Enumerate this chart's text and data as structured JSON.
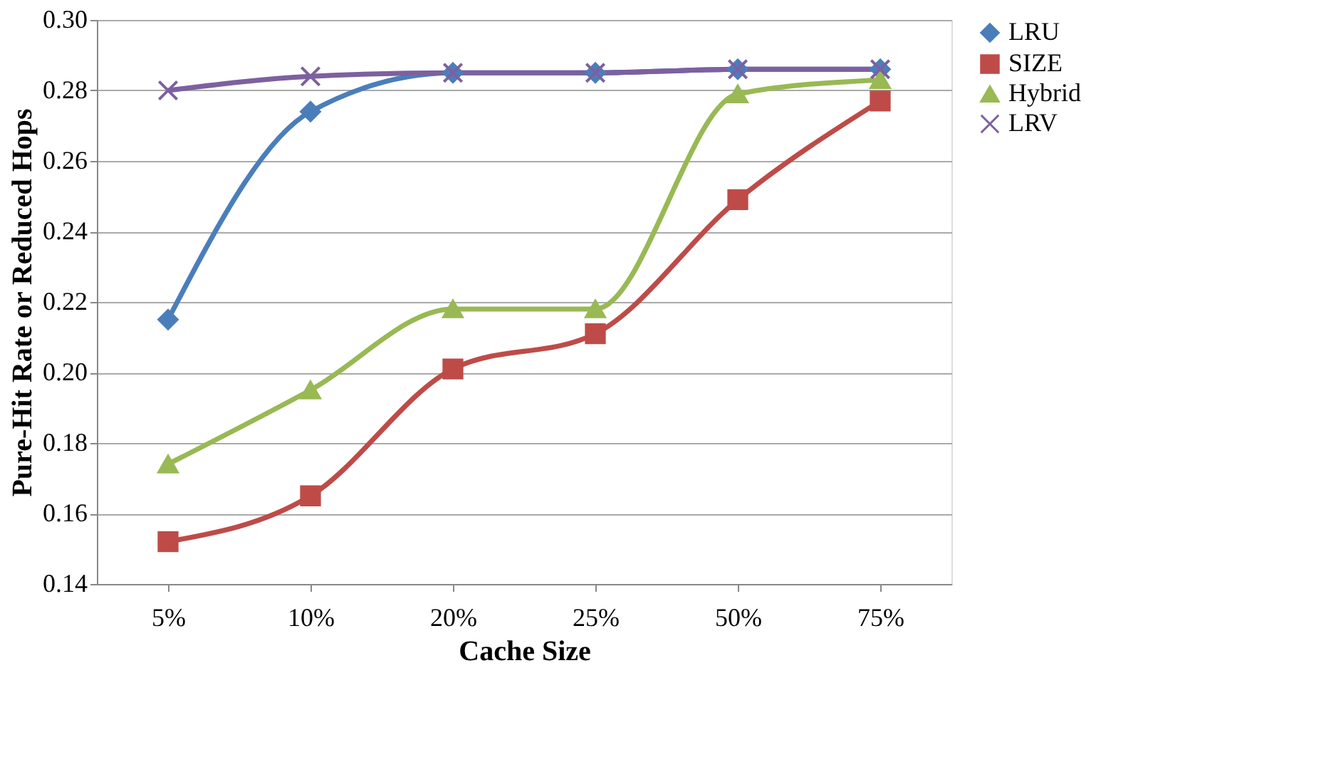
{
  "chart_data": {
    "type": "line",
    "xlabel": "Cache Size",
    "ylabel": "Pure-Hit Rate or Reduced Hops",
    "categories": [
      "5%",
      "10%",
      "20%",
      "25%",
      "50%",
      "75%"
    ],
    "ylim": [
      0.14,
      0.3
    ],
    "yticks": [
      {
        "value": 0.14,
        "label": "0.14"
      },
      {
        "value": 0.16,
        "label": "0.16"
      },
      {
        "value": 0.18,
        "label": "0.18"
      },
      {
        "value": 0.2,
        "label": "0.20"
      },
      {
        "value": 0.22,
        "label": "0.22"
      },
      {
        "value": 0.24,
        "label": "0.24"
      },
      {
        "value": 0.26,
        "label": "0.26"
      },
      {
        "value": 0.28,
        "label": "0.28"
      },
      {
        "value": 0.3,
        "label": "0.30"
      }
    ],
    "grid": "y",
    "legend": "right",
    "series": [
      {
        "name": "LRU",
        "color": "#4a7ebb",
        "marker": "diamond",
        "values": [
          0.215,
          0.274,
          0.285,
          0.285,
          0.286,
          0.286
        ]
      },
      {
        "name": "SIZE",
        "color": "#be4b48",
        "marker": "square",
        "values": [
          0.152,
          0.165,
          0.201,
          0.211,
          0.249,
          0.277
        ]
      },
      {
        "name": "Hybrid",
        "color": "#98b954",
        "marker": "triangle",
        "values": [
          0.174,
          0.195,
          0.218,
          0.218,
          0.279,
          0.283
        ]
      },
      {
        "name": "LRV",
        "color": "#7d60a0",
        "marker": "cross",
        "values": [
          0.28,
          0.284,
          0.285,
          0.285,
          0.286,
          0.286
        ]
      }
    ]
  }
}
